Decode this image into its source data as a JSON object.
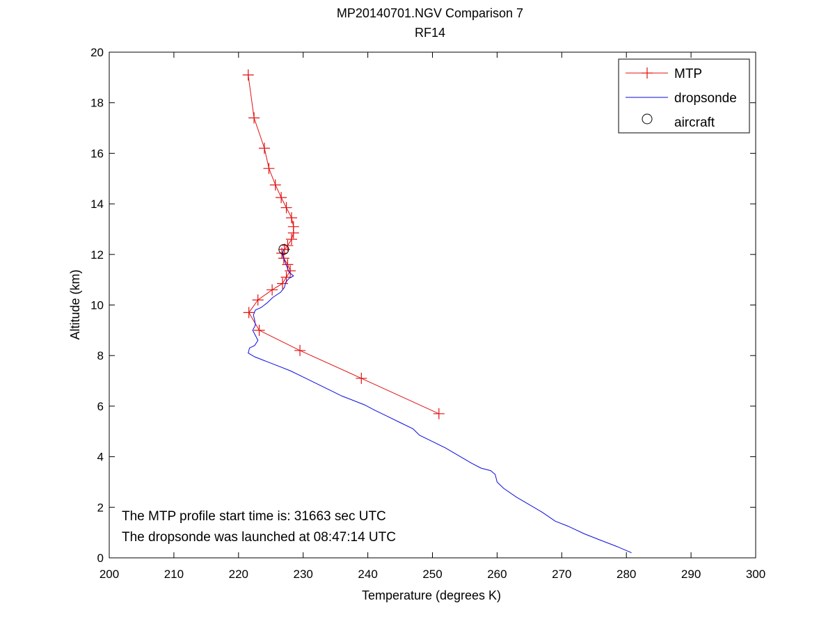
{
  "chart_data": {
    "type": "line",
    "title": "MP20140701.NGV Comparison 7",
    "subtitle": "RF14",
    "xlabel": "Temperature (degrees K)",
    "ylabel": "Altitude (km)",
    "xlim": [
      200,
      300
    ],
    "ylim": [
      0,
      20
    ],
    "xticks": [
      200,
      210,
      220,
      230,
      240,
      250,
      260,
      270,
      280,
      290,
      300
    ],
    "yticks": [
      0,
      2,
      4,
      6,
      8,
      10,
      12,
      14,
      16,
      18,
      20
    ],
    "grid": false,
    "legend_position": "top-right",
    "series": [
      {
        "name": "MTP",
        "color": "#e01010",
        "marker": "plus",
        "points": [
          [
            251.0,
            5.7
          ],
          [
            239.0,
            7.1
          ],
          [
            229.5,
            8.2
          ],
          [
            223.2,
            9.0
          ],
          [
            221.6,
            9.7
          ],
          [
            223.0,
            10.2
          ],
          [
            225.2,
            10.6
          ],
          [
            226.8,
            10.85
          ],
          [
            227.4,
            11.1
          ],
          [
            228.0,
            11.35
          ],
          [
            227.6,
            11.6
          ],
          [
            227.0,
            11.85
          ],
          [
            226.7,
            12.05
          ],
          [
            227.1,
            12.2
          ],
          [
            227.6,
            12.35
          ],
          [
            228.2,
            12.6
          ],
          [
            228.5,
            12.85
          ],
          [
            228.5,
            13.1
          ],
          [
            228.2,
            13.45
          ],
          [
            227.4,
            13.85
          ],
          [
            226.6,
            14.25
          ],
          [
            225.7,
            14.75
          ],
          [
            224.7,
            15.4
          ],
          [
            224.0,
            16.2
          ],
          [
            222.4,
            17.4
          ],
          [
            221.5,
            19.1
          ]
        ]
      },
      {
        "name": "dropsonde",
        "color": "#0a0ae0",
        "marker": "none",
        "points": [
          [
            280.8,
            0.2
          ],
          [
            278.5,
            0.45
          ],
          [
            276.0,
            0.7
          ],
          [
            273.5,
            0.95
          ],
          [
            271.0,
            1.25
          ],
          [
            269.0,
            1.45
          ],
          [
            267.0,
            1.8
          ],
          [
            265.0,
            2.1
          ],
          [
            263.0,
            2.4
          ],
          [
            261.0,
            2.75
          ],
          [
            260.0,
            3.0
          ],
          [
            259.7,
            3.3
          ],
          [
            259.0,
            3.45
          ],
          [
            257.5,
            3.55
          ],
          [
            256.0,
            3.75
          ],
          [
            254.0,
            4.05
          ],
          [
            252.0,
            4.35
          ],
          [
            250.0,
            4.6
          ],
          [
            248.0,
            4.85
          ],
          [
            247.0,
            5.1
          ],
          [
            245.0,
            5.35
          ],
          [
            243.0,
            5.6
          ],
          [
            241.0,
            5.85
          ],
          [
            239.5,
            6.05
          ],
          [
            238.0,
            6.2
          ],
          [
            236.0,
            6.4
          ],
          [
            234.0,
            6.65
          ],
          [
            232.0,
            6.9
          ],
          [
            230.0,
            7.15
          ],
          [
            228.0,
            7.4
          ],
          [
            226.0,
            7.6
          ],
          [
            224.0,
            7.8
          ],
          [
            222.5,
            7.95
          ],
          [
            221.5,
            8.1
          ],
          [
            221.7,
            8.3
          ],
          [
            222.5,
            8.4
          ],
          [
            223.0,
            8.6
          ],
          [
            222.6,
            8.8
          ],
          [
            222.2,
            9.0
          ],
          [
            222.6,
            9.2
          ],
          [
            222.5,
            9.4
          ],
          [
            222.3,
            9.6
          ],
          [
            222.6,
            9.8
          ],
          [
            223.5,
            9.9
          ],
          [
            224.5,
            10.1
          ],
          [
            225.3,
            10.3
          ],
          [
            226.5,
            10.5
          ],
          [
            227.1,
            10.7
          ],
          [
            227.3,
            10.9
          ],
          [
            227.8,
            11.05
          ],
          [
            228.5,
            11.15
          ],
          [
            227.8,
            11.3
          ],
          [
            227.5,
            11.5
          ],
          [
            227.2,
            11.7
          ],
          [
            226.9,
            11.9
          ],
          [
            226.8,
            12.05
          ],
          [
            227.0,
            12.2
          ]
        ]
      },
      {
        "name": "aircraft",
        "color": "#000000",
        "marker": "circle",
        "points": [
          [
            227.0,
            12.2
          ]
        ]
      }
    ],
    "annotations": [
      "The MTP profile start time is: 31663 sec UTC",
      "The dropsonde was launched at 08:47:14 UTC"
    ]
  }
}
